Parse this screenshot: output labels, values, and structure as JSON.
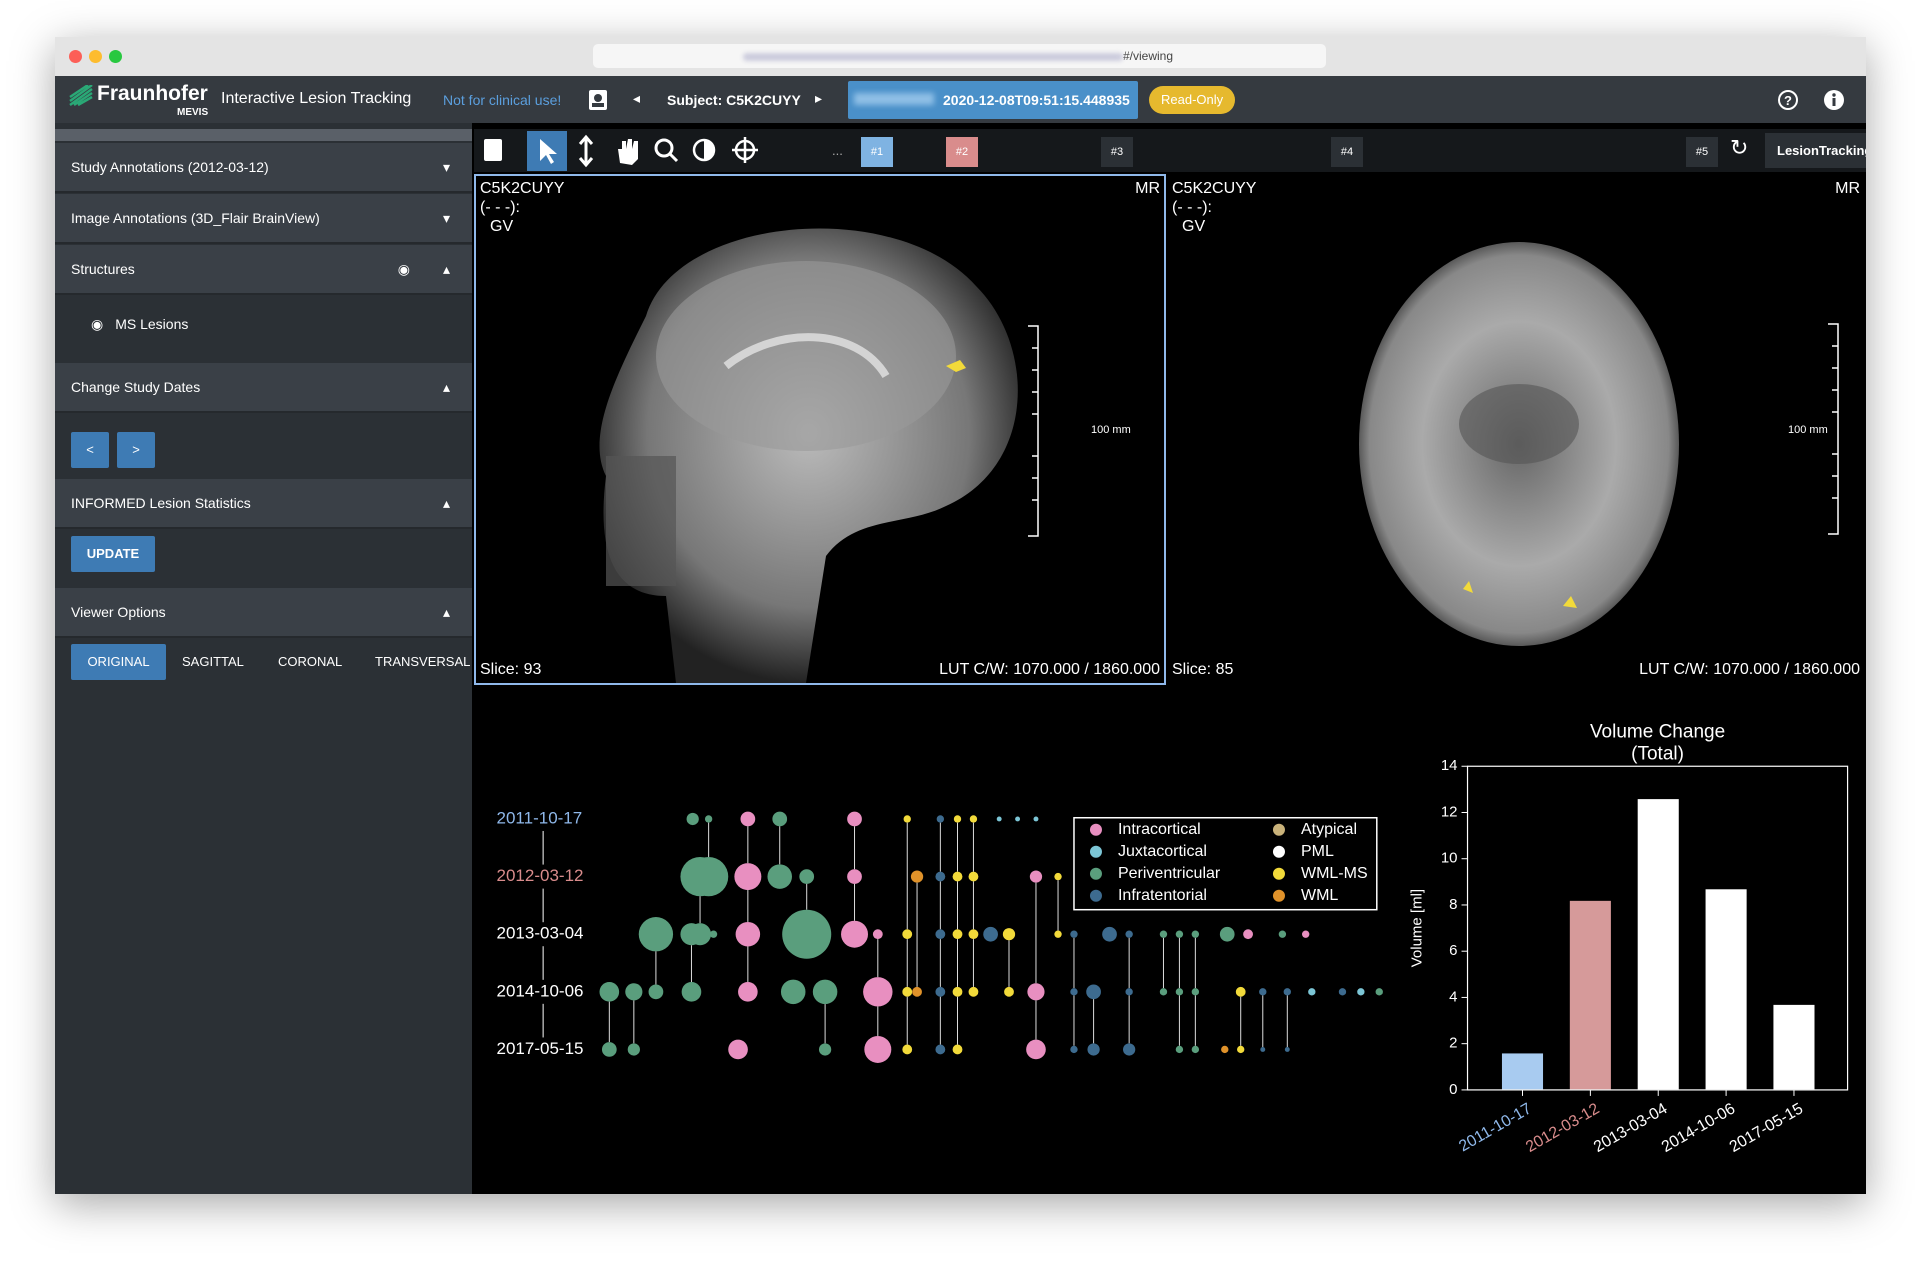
{
  "browser": {
    "url": "#/viewing"
  },
  "header": {
    "brand": "Fraunhofer",
    "brand_sub": "MEVIS",
    "app_title": "Interactive Lesion Tracking",
    "warning": "Not for clinical use!",
    "subject": "Subject: C5K2CUYY",
    "study_date": "2020-12-08T09:51:15.448935",
    "badge": "Read-Only"
  },
  "sidebar": {
    "study_annotations": "Study Annotations (2012-03-12)",
    "image_annotations": "Image Annotations (3D_Flair BrainView)",
    "structures": "Structures",
    "structure_item": "MS Lesions",
    "change_dates": "Change Study Dates",
    "prev": "<",
    "next": ">",
    "statistics": "INFORMED Lesion Statistics",
    "update": "UPDATE",
    "viewer_options": "Viewer Options",
    "views": [
      "ORIGINAL",
      "SAGITTAL",
      "CORONAL",
      "TRANSVERSAL"
    ]
  },
  "toolbar": {
    "more": "...",
    "slots": [
      "#1",
      "#2",
      "#3",
      "#4",
      "#5"
    ],
    "layout": "LesionTracking"
  },
  "viewports": [
    {
      "patient": "C5K2CUYY",
      "info": "(- - -):",
      "view": "GV",
      "modality": "MR",
      "scale": "100 mm",
      "slice": "Slice: 93",
      "lut": "LUT C/W: 1070.000 / 1860.000"
    },
    {
      "patient": "C5K2CUYY",
      "info": "(- - -):",
      "view": "GV",
      "modality": "MR",
      "scale": "100 mm",
      "slice": "Slice: 85",
      "lut": "LUT C/W: 1070.000 / 1860.000"
    }
  ],
  "lesion_graph": {
    "dates": [
      "2011-10-17",
      "2012-03-12",
      "2013-03-04",
      "2014-10-06",
      "2017-05-15"
    ],
    "date_colors": [
      "#8fb8ea",
      "#d98c8c",
      "#ffffff",
      "#ffffff",
      "#ffffff"
    ],
    "legend": [
      {
        "name": "Intracortical",
        "color": "#e88fc0"
      },
      {
        "name": "Juxtacortical",
        "color": "#7cc6d6"
      },
      {
        "name": "Periventricular",
        "color": "#5a9e7d"
      },
      {
        "name": "Infratentorial",
        "color": "#3d6b8f"
      },
      {
        "name": "Atypical",
        "color": "#c9b27a"
      },
      {
        "name": "PML",
        "color": "#ffffff"
      },
      {
        "name": "WML-MS",
        "color": "#f2da3a"
      },
      {
        "name": "WML",
        "color": "#e0922a"
      }
    ]
  },
  "chart_data": {
    "type": "bar",
    "title": "Volume Change",
    "subtitle": "(Total)",
    "y_label": "Volume [ml]",
    "categories": [
      "2011-10-17",
      "2012-03-12",
      "2013-03-04",
      "2014-10-06",
      "2017-05-15"
    ],
    "values": [
      1.6,
      8.2,
      12.6,
      8.7,
      3.7
    ],
    "colors": [
      "#a8cbf0",
      "#d69a9a",
      "#ffffff",
      "#ffffff",
      "#ffffff"
    ],
    "tick_label_colors": [
      "#8fb8ea",
      "#d98c8c",
      "#ffffff",
      "#ffffff",
      "#ffffff"
    ],
    "ylim": [
      0,
      14
    ],
    "yticks": [
      0,
      2,
      4,
      6,
      8,
      10,
      12,
      14
    ]
  }
}
